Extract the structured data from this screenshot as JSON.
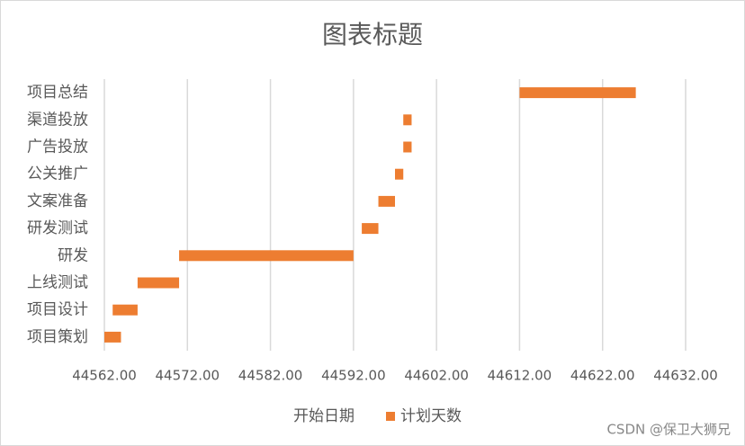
{
  "chart_data": {
    "type": "gantt",
    "title": "图表标题",
    "categories": [
      "项目策划",
      "项目设计",
      "上线测试",
      "研发",
      "研发测试",
      "文案准备",
      "公关推广",
      "广告投放",
      "渠道投放",
      "项目总结"
    ],
    "series": [
      {
        "name": "开始日期",
        "values": [
          44562,
          44563,
          44566,
          44571,
          44593,
          44595,
          44597,
          44598,
          44598,
          44612
        ]
      },
      {
        "name": "计划天数",
        "color": "#ed7d31",
        "values": [
          2,
          3,
          5,
          21,
          2,
          2,
          1,
          1,
          1,
          14
        ]
      }
    ],
    "xlim": [
      44562,
      44632
    ],
    "xticks": [
      {
        "value": 44562,
        "label": "44562.00"
      },
      {
        "value": 44572,
        "label": "44572.00"
      },
      {
        "value": 44582,
        "label": "44582.00"
      },
      {
        "value": 44592,
        "label": "44592.00"
      },
      {
        "value": 44602,
        "label": "44602.00"
      },
      {
        "value": 44612,
        "label": "44612.00"
      },
      {
        "value": 44622,
        "label": "44622.00"
      },
      {
        "value": 44632,
        "label": "44632.00"
      }
    ],
    "grid": true,
    "legend": "bottom",
    "watermark": "CSDN @保卫大狮兄"
  }
}
